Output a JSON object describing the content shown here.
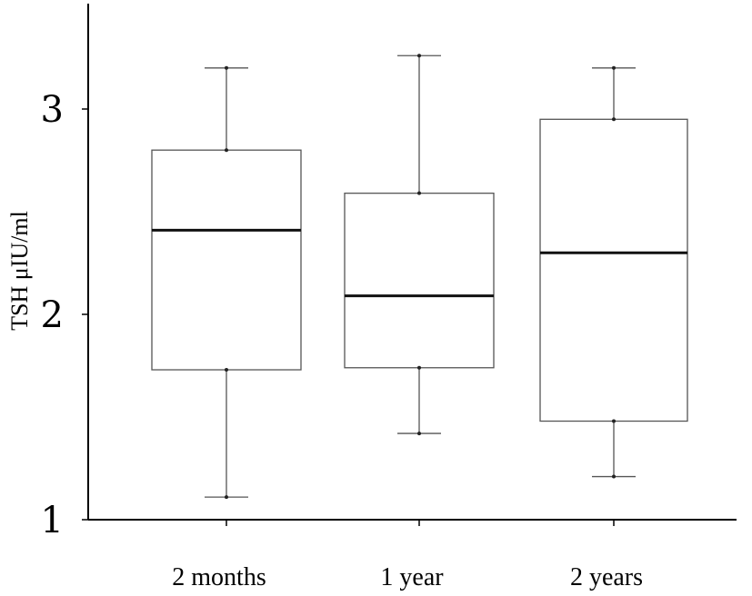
{
  "chart_data": {
    "type": "box",
    "title": "",
    "xlabel": "",
    "ylabel": "TSH μIU/ml",
    "ylim": [
      1,
      3.45
    ],
    "yticks": [
      1,
      2,
      3
    ],
    "grid": false,
    "categories": [
      "2 months",
      "1 year",
      "2 years"
    ],
    "series": [
      {
        "category": "2 months",
        "min": 1.11,
        "q1": 1.73,
        "median": 2.41,
        "q3": 2.8,
        "max": 3.2
      },
      {
        "category": "1 year",
        "min": 1.42,
        "q1": 1.74,
        "median": 2.09,
        "q3": 2.59,
        "max": 3.26
      },
      {
        "category": "2 years",
        "min": 1.21,
        "q1": 1.48,
        "median": 2.3,
        "q3": 2.95,
        "max": 3.2
      }
    ]
  }
}
